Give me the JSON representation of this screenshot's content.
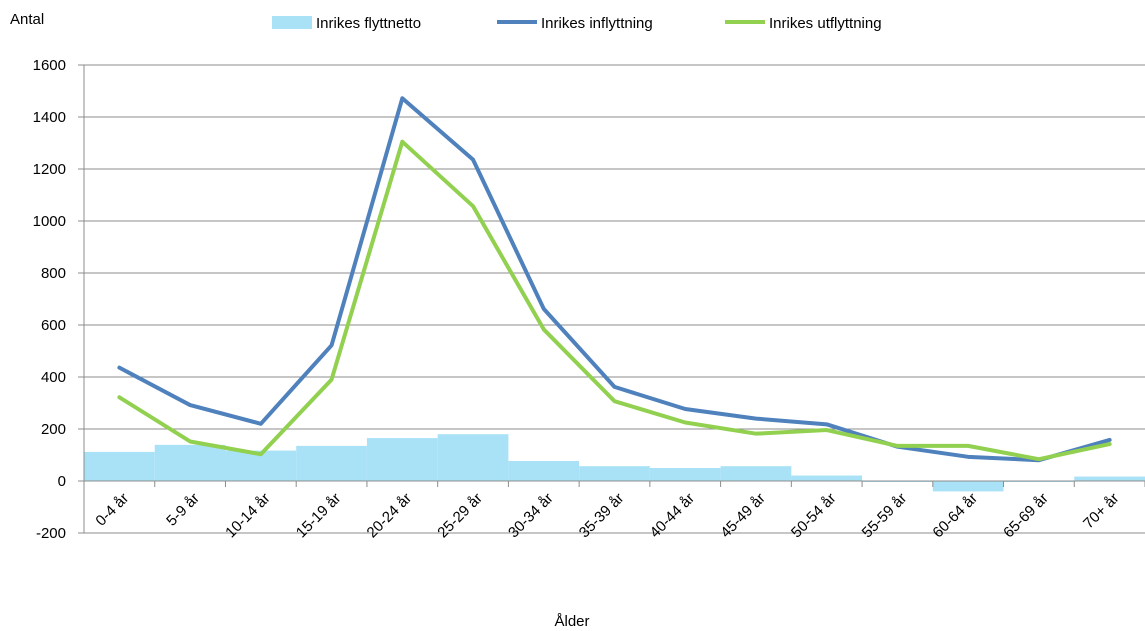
{
  "chart_data": {
    "type": "bar",
    "categories": [
      "0-4 år",
      "5-9 år",
      "10-14 år",
      "15-19 år",
      "20-24 år",
      "25-29 år",
      "30-34 år",
      "35-39 år",
      "40-44 år",
      "45-49 år",
      "50-54 år",
      "55-59 år",
      "60-64 år",
      "65-69 år",
      "70+ år"
    ],
    "series": [
      {
        "name": "Inrikes flyttnetto",
        "kind": "bar",
        "color": "#a9e2f7",
        "values": [
          112,
          139,
          117,
          135,
          165,
          180,
          77,
          57,
          50,
          57,
          21,
          -2,
          -40,
          -3,
          17
        ]
      },
      {
        "name": "Inrikes inflyttning",
        "kind": "line",
        "color": "#4f81bd",
        "values": [
          436,
          292,
          220,
          522,
          1472,
          1236,
          662,
          362,
          277,
          240,
          218,
          132,
          93,
          80,
          158
        ]
      },
      {
        "name": "Inrikes utflyttning",
        "kind": "line",
        "color": "#92d050",
        "values": [
          322,
          152,
          103,
          390,
          1305,
          1057,
          583,
          307,
          225,
          182,
          196,
          135,
          135,
          84,
          142
        ]
      }
    ],
    "ylabel": "Antal",
    "xlabel": "Ålder",
    "ylim": [
      -200,
      1600
    ],
    "yticks": [
      -200,
      0,
      200,
      400,
      600,
      800,
      1000,
      1200,
      1400,
      1600
    ],
    "grid": true,
    "legend_position": "top"
  }
}
